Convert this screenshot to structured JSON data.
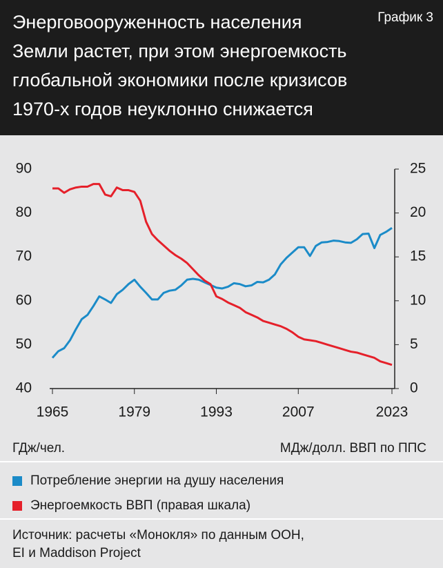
{
  "chart_data": {
    "type": "line",
    "badge": "График 3",
    "title": [
      "Энерговооруженность населения",
      "Земли растет, при этом энергоемкость",
      "глобальной экономики после кризисов",
      "1970-х годов неуклонно снижается"
    ],
    "y_label": "ГДж/чел.",
    "y2_label": "МДж/долл. ВВП по ППС",
    "x": [
      1965,
      1966,
      1967,
      1968,
      1969,
      1970,
      1971,
      1972,
      1973,
      1974,
      1975,
      1976,
      1977,
      1978,
      1979,
      1980,
      1981,
      1982,
      1983,
      1984,
      1985,
      1986,
      1987,
      1988,
      1989,
      1990,
      1991,
      1992,
      1993,
      1994,
      1995,
      1996,
      1997,
      1998,
      1999,
      2000,
      2001,
      2002,
      2003,
      2004,
      2005,
      2006,
      2007,
      2008,
      2009,
      2010,
      2011,
      2012,
      2013,
      2014,
      2015,
      2016,
      2017,
      2018,
      2019,
      2020,
      2021,
      2022,
      2023
    ],
    "xlim": [
      1965,
      2023
    ],
    "xticks": [
      1965,
      1979,
      1993,
      2007,
      2023
    ],
    "ylim": [
      40,
      90
    ],
    "yticks": [
      40,
      50,
      60,
      70,
      80,
      90
    ],
    "y2lim": [
      0,
      25
    ],
    "y2ticks": [
      0,
      5,
      10,
      15,
      20,
      25
    ],
    "legend": "bottom",
    "series": [
      {
        "name": "Потребление энергии на душу населения",
        "color": "#1b8bc8",
        "axis": "y",
        "values": [
          47,
          48.5,
          49.2,
          51,
          53.5,
          55.8,
          56.8,
          58.8,
          61,
          60.3,
          59.5,
          61.5,
          62.5,
          63.8,
          64.8,
          63.2,
          61.8,
          60.3,
          60.3,
          61.8,
          62.3,
          62.5,
          63.5,
          64.8,
          65,
          64.8,
          64.2,
          63.6,
          63,
          62.8,
          63.2,
          64,
          63.8,
          63.3,
          63.5,
          64.3,
          64.2,
          64.8,
          66,
          68.3,
          69.8,
          71,
          72.2,
          72.2,
          70.2,
          72.5,
          73.3,
          73.4,
          73.7,
          73.6,
          73.3,
          73.2,
          74,
          75.2,
          75.3,
          72,
          75,
          75.7,
          76.6
        ]
      },
      {
        "name": "Энергоемкость ВВП (правая шкала)",
        "color": "#e5202a",
        "axis": "y2",
        "values": [
          22.8,
          22.8,
          22.3,
          22.7,
          22.9,
          23,
          23,
          23.3,
          23.3,
          22.1,
          21.9,
          22.9,
          22.6,
          22.6,
          22.4,
          21.4,
          19,
          17.6,
          16.9,
          16.3,
          15.7,
          15.2,
          14.8,
          14.3,
          13.6,
          12.9,
          12.3,
          11.9,
          10.5,
          10.2,
          9.8,
          9.5,
          9.2,
          8.7,
          8.4,
          8.1,
          7.7,
          7.5,
          7.3,
          7.1,
          6.8,
          6.4,
          5.9,
          5.6,
          5.5,
          5.4,
          5.2,
          5,
          4.8,
          4.6,
          4.4,
          4.2,
          4.1,
          3.9,
          3.7,
          3.5,
          3.1,
          2.9,
          2.7
        ]
      }
    ],
    "source": [
      "Источник: расчеты «Монокля» по данным ООН,",
      "EI и Maddison Project"
    ]
  }
}
